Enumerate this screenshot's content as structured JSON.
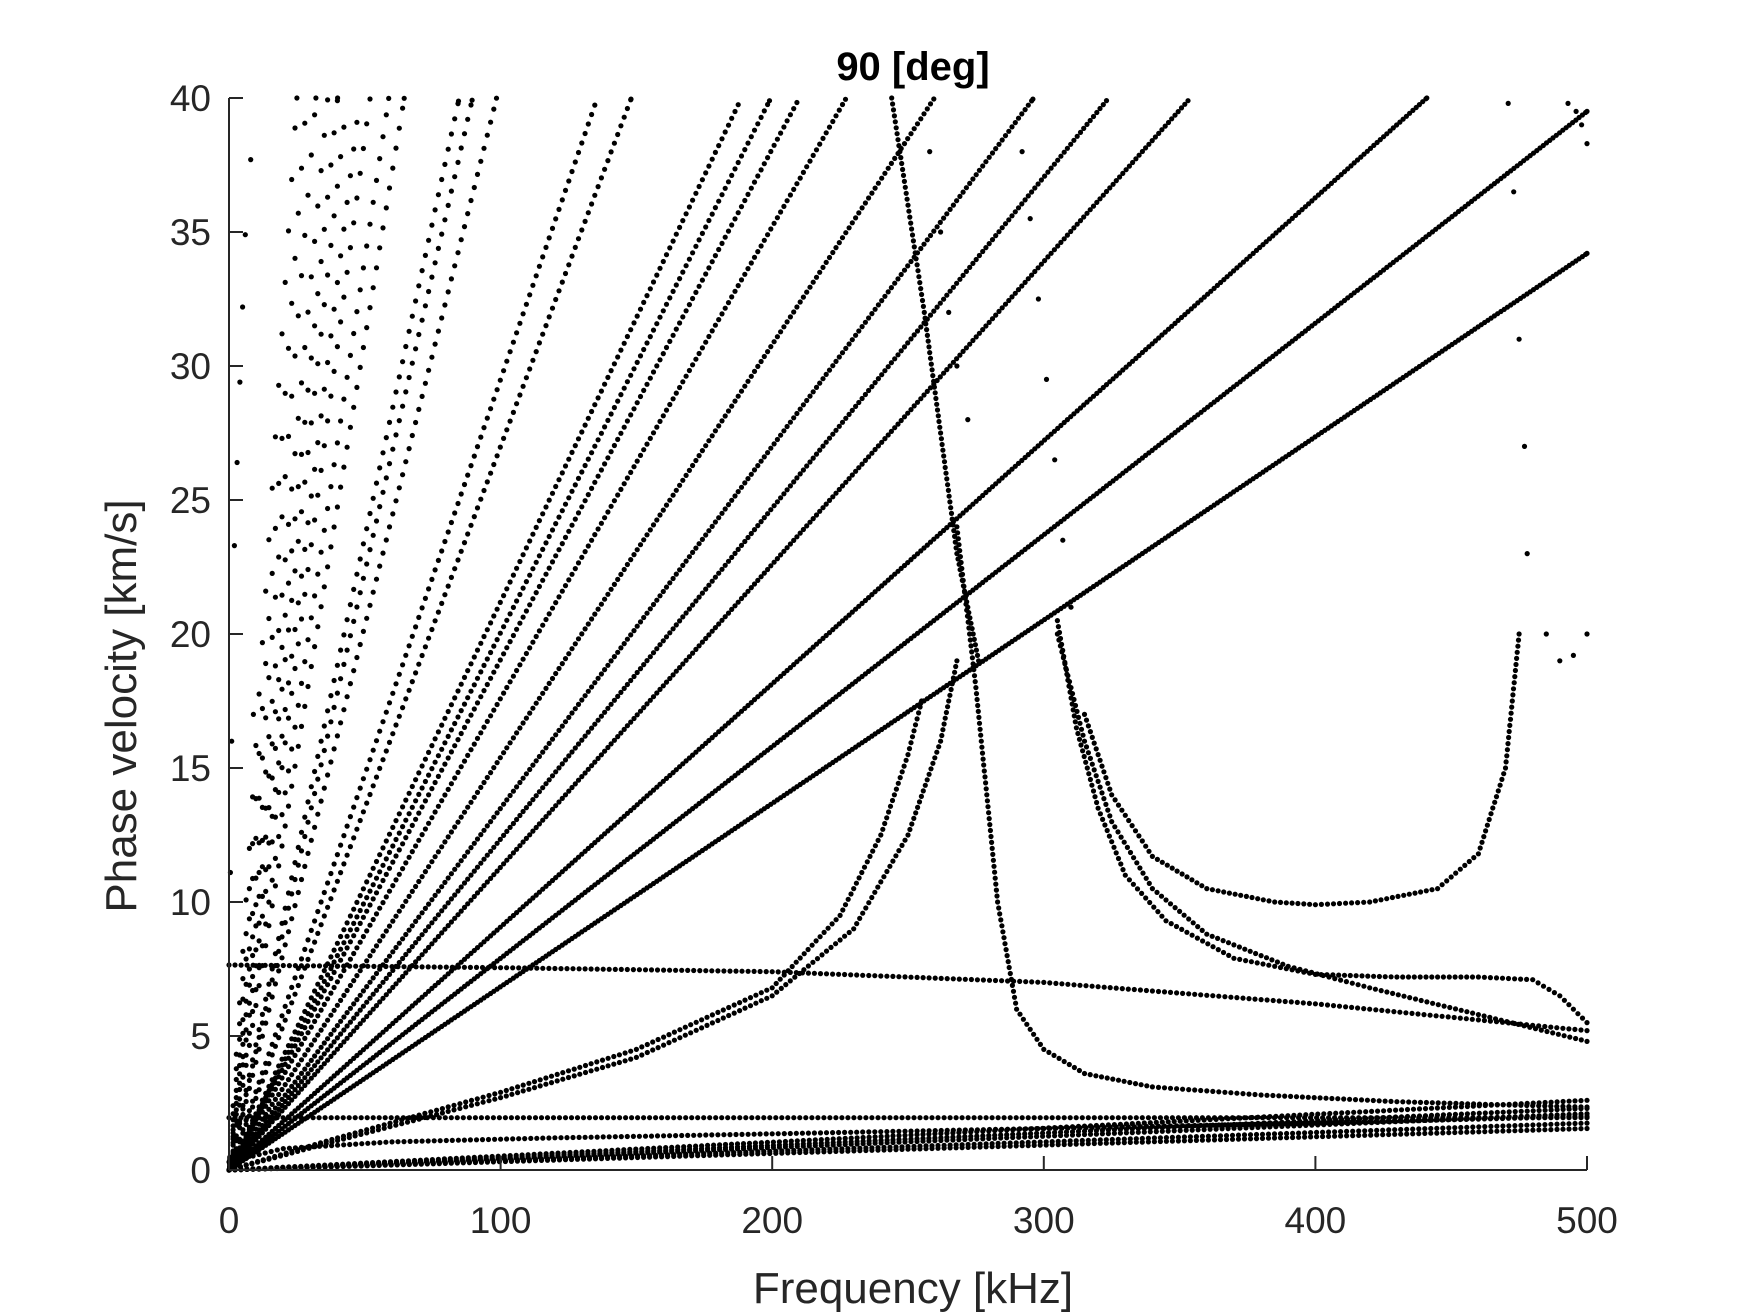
{
  "chart_data": {
    "type": "scatter",
    "title": "90 [deg]",
    "xlabel": "Frequency [kHz]",
    "ylabel": "Phase velocity [km/s]",
    "xlim": [
      0,
      500
    ],
    "ylim": [
      0,
      40
    ],
    "xticks": [
      0,
      100,
      200,
      300,
      400,
      500
    ],
    "yticks": [
      0,
      5,
      10,
      15,
      20,
      25,
      30,
      35,
      40
    ],
    "xtick_labels": [
      "0",
      "100",
      "200",
      "300",
      "400",
      "500"
    ],
    "ytick_labels": [
      "0",
      "5",
      "10",
      "15",
      "20",
      "25",
      "30",
      "35",
      "40"
    ],
    "grid": false,
    "legend": "none",
    "marker_color": "#000000",
    "series": [
      {
        "kind": "linear",
        "slope": 0.0684,
        "xmax": 500
      },
      {
        "kind": "linear",
        "slope": 0.079,
        "xmax": 500
      },
      {
        "kind": "linear",
        "slope": 0.0907,
        "xmax": 441
      },
      {
        "kind": "linear",
        "slope": 0.113,
        "xmax": 354
      },
      {
        "kind": "linear",
        "slope": 0.1235,
        "xmax": 324
      },
      {
        "kind": "linear",
        "slope": 0.135,
        "xmax": 296
      },
      {
        "kind": "linear",
        "slope": 0.154,
        "xmax": 260
      },
      {
        "kind": "linear",
        "slope": 0.176,
        "xmax": 227
      },
      {
        "kind": "linear",
        "slope": 0.1905,
        "xmax": 210
      },
      {
        "kind": "linear",
        "slope": 0.2005,
        "xmax": 199
      },
      {
        "kind": "linear",
        "slope": 0.212,
        "xmax": 189
      },
      {
        "kind": "linear",
        "slope": 0.27,
        "xmax": 148
      },
      {
        "kind": "linear",
        "slope": 0.295,
        "xmax": 136
      },
      {
        "kind": "linear",
        "slope": 0.406,
        "xmax": 98.5
      },
      {
        "kind": "linear",
        "slope": 0.446,
        "xmax": 89.5
      },
      {
        "kind": "linear",
        "slope": 0.472,
        "xmax": 84.5
      },
      {
        "kind": "linear",
        "slope": 0.62,
        "xmax": 64.5
      },
      {
        "kind": "linear",
        "slope": 0.68,
        "xmax": 58.8
      },
      {
        "kind": "linear",
        "slope": 0.77,
        "xmax": 51.9
      },
      {
        "kind": "linear",
        "slope": 0.83,
        "xmax": 48.2
      },
      {
        "kind": "linear",
        "slope": 0.92,
        "xmax": 43.5
      },
      {
        "kind": "linear",
        "slope": 1.0,
        "xmax": 40
      },
      {
        "kind": "linear",
        "slope": 1.1,
        "xmax": 36.4
      },
      {
        "kind": "linear",
        "slope": 1.25,
        "xmax": 32
      },
      {
        "kind": "linear",
        "slope": 1.4,
        "xmax": 28.6
      },
      {
        "kind": "linear",
        "slope": 1.6,
        "xmax": 25
      },
      {
        "kind": "points",
        "x": [
          0,
          100,
          200,
          300,
          400,
          500
        ],
        "y": [
          7.65,
          7.55,
          7.4,
          7.0,
          6.2,
          5.2
        ]
      },
      {
        "kind": "points",
        "x": [
          0,
          500
        ],
        "y": [
          1.95,
          1.95
        ]
      },
      {
        "kind": "points",
        "x": [
          0,
          500
        ],
        "y": [
          0,
          1.55
        ]
      },
      {
        "kind": "points",
        "x": [
          0,
          500
        ],
        "y": [
          0,
          1.75
        ]
      },
      {
        "kind": "points",
        "x": [
          0,
          500
        ],
        "y": [
          0,
          2.1
        ]
      },
      {
        "kind": "points",
        "x": [
          0,
          500
        ],
        "y": [
          0,
          2.3
        ]
      },
      {
        "kind": "points",
        "x": [
          0,
          500
        ],
        "y": [
          0,
          2.6
        ]
      },
      {
        "kind": "points",
        "x": [
          0,
          20,
          60,
          120,
          200,
          300,
          400,
          500
        ],
        "y": [
          0.3,
          0.8,
          1.05,
          1.2,
          1.35,
          1.55,
          1.75,
          2.0
        ]
      },
      {
        "kind": "points",
        "x": [
          0,
          40,
          100,
          150,
          200,
          225,
          240,
          250,
          255
        ],
        "y": [
          0,
          1.2,
          2.9,
          4.5,
          6.8,
          9.5,
          12.5,
          15.5,
          17.5
        ]
      },
      {
        "kind": "points",
        "x": [
          0,
          40,
          100,
          150,
          200,
          230,
          250,
          262,
          268
        ],
        "y": [
          0,
          1.1,
          2.7,
          4.2,
          6.5,
          9.0,
          12.5,
          16.0,
          19.0
        ]
      },
      {
        "kind": "points",
        "x": [
          268,
          275,
          283,
          290,
          300,
          315,
          340,
          380,
          430,
          480,
          500
        ],
        "y": [
          24.0,
          18.0,
          10.0,
          6.0,
          4.5,
          3.6,
          3.1,
          2.8,
          2.55,
          2.4,
          2.35
        ]
      },
      {
        "kind": "points",
        "x": [
          305,
          312,
          320,
          330,
          345,
          370,
          400,
          430,
          460,
          480,
          490,
          500
        ],
        "y": [
          20.5,
          16.5,
          13.5,
          11.0,
          9.3,
          7.9,
          7.3,
          7.2,
          7.2,
          7.1,
          6.5,
          5.5
        ]
      },
      {
        "kind": "points",
        "x": [
          305,
          315,
          325,
          340,
          360,
          390,
          420,
          460,
          500
        ],
        "y": [
          20.0,
          16.0,
          13.0,
          10.5,
          8.8,
          7.6,
          6.8,
          5.8,
          4.8
        ]
      },
      {
        "kind": "points",
        "x": [
          315,
          325,
          340,
          360,
          385,
          400,
          420,
          445,
          460,
          470,
          475
        ],
        "y": [
          17.0,
          14.0,
          11.7,
          10.5,
          10.0,
          9.9,
          10.0,
          10.5,
          11.8,
          15.0,
          20.0
        ]
      },
      {
        "kind": "points",
        "x": [
          485,
          490,
          495,
          500
        ],
        "y": [
          20.0,
          19.0,
          19.2,
          20.0
        ]
      },
      {
        "kind": "points",
        "x": [
          244,
          247,
          250,
          253,
          256,
          258,
          260,
          262,
          264,
          266,
          268,
          270,
          272,
          274,
          276
        ],
        "y": [
          40,
          38,
          36,
          34,
          32,
          30.5,
          29,
          27.5,
          26,
          24.5,
          23,
          22,
          21,
          20,
          19
        ]
      },
      {
        "kind": "points",
        "x": [
          258,
          262,
          265,
          268,
          272
        ],
        "y": [
          38.0,
          35.0,
          32.0,
          30.0,
          28.0
        ]
      },
      {
        "kind": "points",
        "x": [
          292,
          295,
          298,
          301,
          304,
          307,
          310
        ],
        "y": [
          38,
          35.5,
          32.5,
          29.5,
          26.5,
          23.5,
          21.0
        ]
      },
      {
        "kind": "points",
        "x": [
          471,
          473,
          475,
          477,
          478
        ],
        "y": [
          39.8,
          36.5,
          31.0,
          27.0,
          23.0
        ]
      },
      {
        "kind": "points",
        "x": [
          493,
          496,
          498,
          500
        ],
        "y": [
          39.8,
          39.5,
          39.0,
          38.3
        ]
      },
      {
        "kind": "points",
        "x": [
          0.5,
          1,
          2,
          3,
          4,
          5,
          6,
          8,
          9
        ],
        "y": [
          11.1,
          16.0,
          23.3,
          26.4,
          29.4,
          32.2,
          34.9,
          37.7,
          17.0
        ]
      }
    ]
  }
}
